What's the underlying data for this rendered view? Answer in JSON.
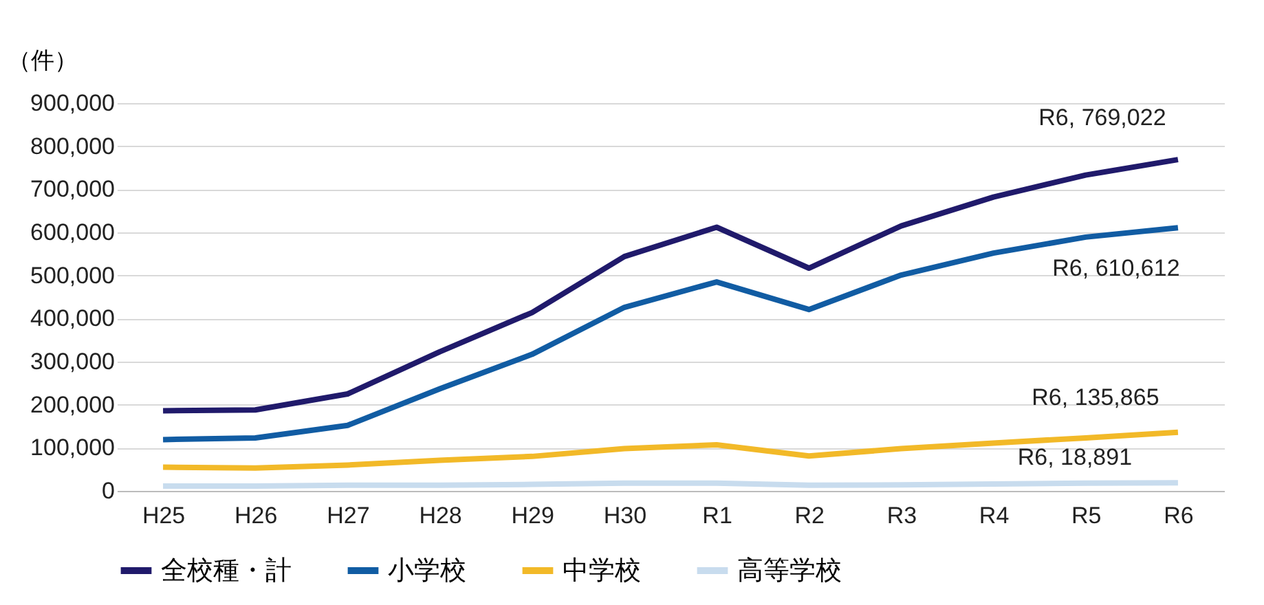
{
  "chart_data": {
    "type": "line",
    "ylabel": "（件）",
    "categories": [
      "H25",
      "H26",
      "H27",
      "H28",
      "H29",
      "H30",
      "R1",
      "R2",
      "R3",
      "R4",
      "R5",
      "R6"
    ],
    "series": [
      {
        "name": "全校種・計",
        "color": "#201a6b",
        "values": [
          186000,
          188000,
          225000,
          323000,
          414000,
          544000,
          612000,
          517000,
          615000,
          682000,
          733000,
          769022
        ]
      },
      {
        "name": "小学校",
        "color": "#115ca3",
        "values": [
          119000,
          123000,
          152000,
          237000,
          317000,
          426000,
          485000,
          421000,
          501000,
          552000,
          589000,
          610612
        ]
      },
      {
        "name": "中学校",
        "color": "#f2b928",
        "values": [
          55000,
          53000,
          60000,
          71000,
          80000,
          98000,
          107000,
          81000,
          98000,
          111000,
          123000,
          135865
        ]
      },
      {
        "name": "高等学校",
        "color": "#c8dcee",
        "values": [
          11000,
          11000,
          13000,
          13000,
          15000,
          18000,
          18000,
          13000,
          14000,
          16000,
          18000,
          18891
        ]
      }
    ],
    "ylim": [
      0,
      900000
    ],
    "yticks": [
      0,
      {
        "value": 100000,
        "label": "100,000"
      },
      {
        "value": 200000,
        "label": "200,000"
      },
      {
        "value": 300000,
        "label": "300,000"
      },
      {
        "value": 400000,
        "label": "400,000"
      },
      {
        "value": 500000,
        "label": "500,000"
      },
      {
        "value": 600000,
        "label": "600,000"
      },
      {
        "value": 700000,
        "label": "700,000"
      },
      {
        "value": 800000,
        "label": "800,000"
      },
      {
        "value": 900000,
        "label": "900,000"
      }
    ],
    "grid": "y",
    "legend": "bottom",
    "marker": "none",
    "line_style": "solid",
    "annotations": [
      {
        "text": "R6, 769,022",
        "x": "R6",
        "y": 769022
      },
      {
        "text": "R6, 610,612",
        "x": "R6",
        "y": 610612
      },
      {
        "text": "R6, 135,865",
        "x": "R6",
        "y": 135865
      },
      {
        "text": "R6, 18,891",
        "x": "R6",
        "y": 18891
      }
    ]
  }
}
